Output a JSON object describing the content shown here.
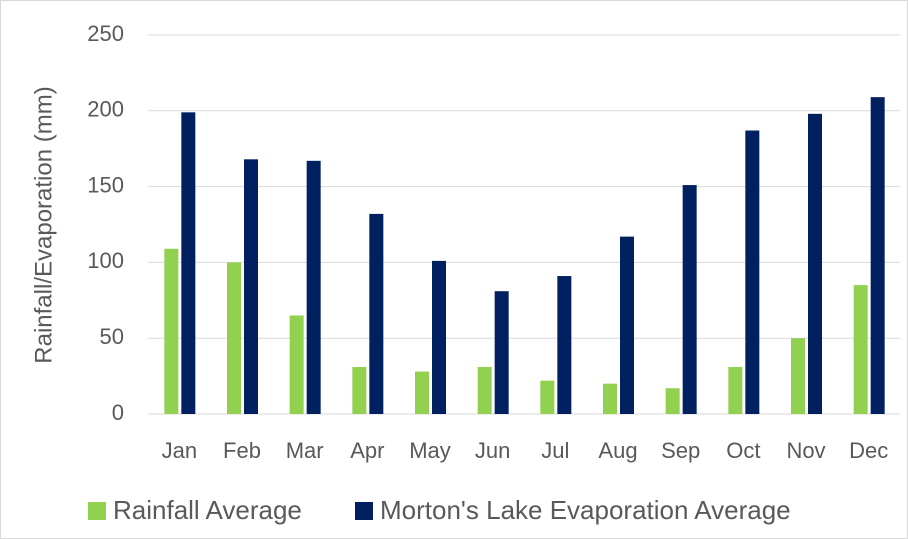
{
  "chart_data": {
    "type": "bar",
    "ylabel": "Rainfall/Evaporation (mm)",
    "categories": [
      "Jan",
      "Feb",
      "Mar",
      "Apr",
      "May",
      "Jun",
      "Jul",
      "Aug",
      "Sep",
      "Oct",
      "Nov",
      "Dec"
    ],
    "series": [
      {
        "name": "Rainfall Average",
        "color": "#92d050",
        "values": [
          109,
          100,
          65,
          31,
          28,
          31,
          22,
          20,
          17,
          31,
          50,
          85
        ]
      },
      {
        "name": "Morton's Lake Evaporation Average",
        "color": "#002060",
        "values": [
          199,
          168,
          167,
          132,
          101,
          81,
          91,
          117,
          151,
          187,
          198,
          209
        ]
      }
    ],
    "ylim": [
      0,
      250
    ],
    "yticks": [
      0,
      50,
      100,
      150,
      200,
      250
    ],
    "grid": true
  }
}
